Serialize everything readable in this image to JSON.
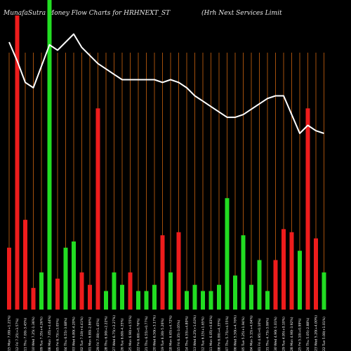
{
  "header": {
    "title_left": "MunafaSutra  Money Flow  Charts for HRHNEXT_ST",
    "title_right": "(Hrh Next Services Limit"
  },
  "chart_data": {
    "type": "bar",
    "title": "MunafaSutra  Money Flow  Charts for HRHNEXT_ST (Hrh Next Services Limit",
    "xlabel": "",
    "ylabel": "",
    "grid": "vertical lines (orange)",
    "colors": {
      "up": "#22dd22",
      "down": "#ee1c1c",
      "grid": "#b5580e",
      "line": "#ffffff",
      "background": "#000000"
    },
    "categories": [
      "15 Mon 7.00(+1.21%)",
      "12 Fri 7.25(+3.57%)",
      "11 Thu 7.00(-3.45%)",
      "10 Wed 7.25(-1.36%)",
      "09 Tue 7.35(+4.26%)",
      "08 Mon 7.05(+4.44%)",
      "05 Fri 6.75(+3.05%)",
      "04 Thu 6.55(-3.68%)",
      "03 Wed 6.80(-4.20%)",
      "02 Tue 7.10(+4.41%)",
      "01 Mon 6.80(-2.86%)",
      "29 Fri 7.00(+1.45%)",
      "28 Thu 6.90(+2.22%)",
      "27 Wed 6.75(+2.27%)",
      "26 Tue 6.60(-4.35%)",
      "25 Mon 6.90(+4.55%)",
      "22 Fri 6.60(+0.76%)",
      "21 Thu 6.55(+0.77%)",
      "20 Wed 6.50(+3.17%)",
      "19 Tue 6.30(-5.26%)",
      "18 Mon 6.65(+4.72%)",
      "15 Fri 6.35(-3.05%)",
      "14 Thu 6.55(+4.80%)",
      "13 Wed 6.25(+1.63%)",
      "12 Tue 6.15(+1.65%)",
      "11 Mon 6.05(+0.83%)",
      "08 Fri 6.00(+4.35%)",
      "07 Thu 5.75(+4.55%)",
      "06 Wed 5.50(+4.76%)",
      "05 Tue 5.25(+1.94%)",
      "04 Mon 5.15(+4.04%)",
      "01 Fri 4.95(+0.10%)",
      "31 Thu 4.75(-3.06%)",
      "30 Wed 4.90(-1.01%)",
      "29 Tue 4.95(+0.10%)",
      "28 Mon 4.90(-3.92%)",
      "25 Fri 5.10(+0.99%)",
      "24 Thu 5.05(-2.88%)",
      "23 Wed 5.20(+4.00%)",
      "22 Tue 5.00(+1.01%)"
    ],
    "direction": [
      "down",
      "down",
      "down",
      "down",
      "up",
      "up",
      "down",
      "up",
      "up",
      "down",
      "down",
      "down",
      "up",
      "up",
      "up",
      "down",
      "up",
      "up",
      "up",
      "down",
      "up",
      "down",
      "up",
      "up",
      "up",
      "up",
      "up",
      "up",
      "up",
      "up",
      "up",
      "up",
      "up",
      "down",
      "down",
      "down",
      "up",
      "down",
      "down",
      "up"
    ],
    "values": [
      20,
      95,
      29,
      7,
      12,
      100,
      10,
      20,
      22,
      12,
      8,
      65,
      6,
      12,
      8,
      12,
      6,
      6,
      8,
      24,
      12,
      25,
      6,
      8,
      6,
      6,
      8,
      36,
      11,
      24,
      8,
      16,
      6,
      16,
      26,
      25,
      19,
      65,
      23,
      12
    ],
    "values_note": "bar heights relative scale 0-100",
    "price_line": [
      100,
      93,
      85,
      83,
      91,
      99,
      97,
      100,
      103,
      98,
      95,
      92,
      90,
      88,
      86,
      86,
      86,
      86,
      86,
      85,
      86,
      85,
      83,
      80,
      78,
      76,
      74,
      72,
      72,
      73,
      75,
      77,
      79,
      80,
      80,
      73,
      66,
      69,
      67,
      66
    ],
    "ylim": [
      0,
      100
    ]
  }
}
